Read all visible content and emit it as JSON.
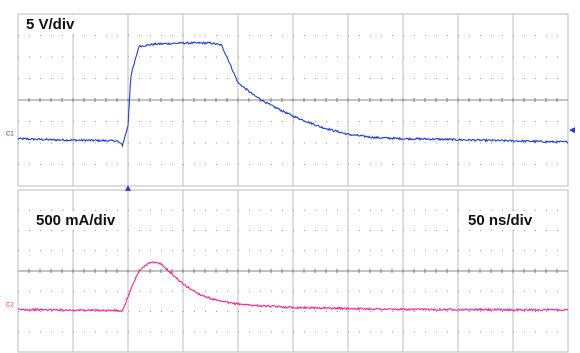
{
  "colors": {
    "grid": "#bdbdbd",
    "grid_dots": "#9a9a9a",
    "background": "#ffffff",
    "ch1": "#1f3fe0",
    "ch2": "#ff1f8e"
  },
  "labels": {
    "ch1_scale": "5 V/div",
    "ch2_scale": "500 mA/div",
    "time_scale": "50 ns/div",
    "ch1_marker": "C1",
    "ch2_marker": "C2"
  },
  "chart_data": [
    {
      "type": "line",
      "title": "",
      "xlabel": "",
      "ylabel": "",
      "grid": true,
      "divisions": {
        "x": 10,
        "y": 8
      },
      "xlim": [
        0,
        10
      ],
      "ylim": [
        -4.2,
        3.8
      ],
      "series": [
        {
          "x": [
            0,
            0.6,
            1.8,
            1.9,
            2.0,
            2.05,
            2.2,
            2.5,
            3.0,
            3.5,
            3.7,
            3.8,
            4.0,
            4.3,
            4.6,
            5.0,
            5.5,
            6.0,
            6.5,
            7.0,
            7.6,
            8.0,
            9.0,
            9.8,
            10.0
          ],
          "y": [
            -2.0,
            -2.05,
            -2.1,
            -2.3,
            -1.4,
            0.9,
            2.3,
            2.4,
            2.45,
            2.45,
            2.35,
            1.8,
            0.6,
            0.0,
            -0.45,
            -0.95,
            -1.45,
            -1.8,
            -1.95,
            -2.0,
            -2.02,
            -2.05,
            -2.1,
            -2.15,
            -2.15
          ]
        }
      ]
    },
    {
      "type": "line",
      "title": "",
      "xlabel": "",
      "ylabel": "",
      "grid": true,
      "divisions": {
        "x": 10,
        "y": 8
      },
      "xlim": [
        0,
        10
      ],
      "ylim": [
        -4.2,
        3.8
      ],
      "series": [
        {
          "x": [
            0,
            0.6,
            1.8,
            1.9,
            2.05,
            2.2,
            2.4,
            2.6,
            2.8,
            3.0,
            3.3,
            3.6,
            3.9,
            4.3,
            5.0,
            6.0,
            7.0,
            8.0,
            9.0,
            10.0
          ],
          "y": [
            -2.1,
            -2.12,
            -2.15,
            -2.2,
            -1.1,
            -0.2,
            0.25,
            0.15,
            -0.35,
            -0.85,
            -1.35,
            -1.65,
            -1.8,
            -1.9,
            -2.0,
            -2.05,
            -2.1,
            -2.1,
            -2.12,
            -2.12
          ]
        }
      ]
    }
  ]
}
